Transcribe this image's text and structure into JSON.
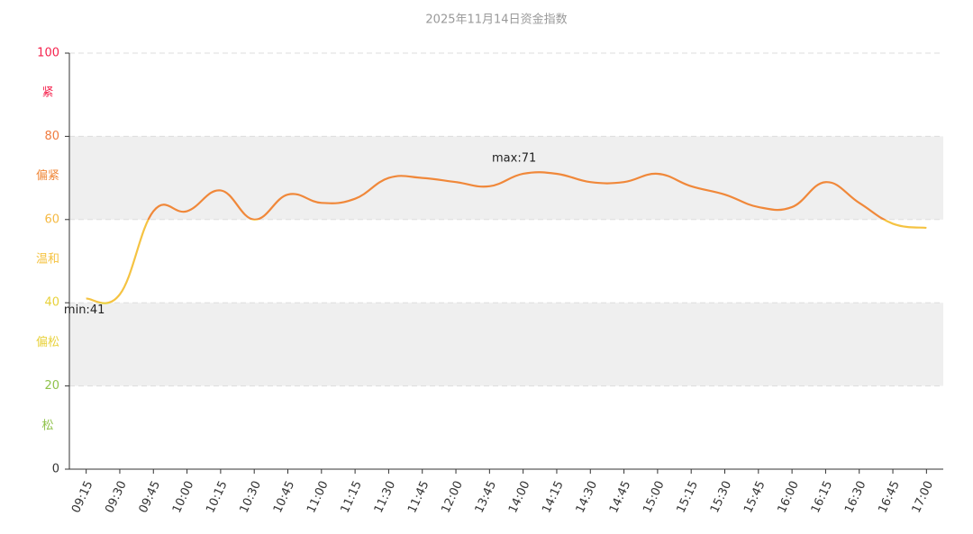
{
  "chart_data": {
    "type": "line",
    "title": "2025年11月14日资金指数",
    "categories": [
      "09:15",
      "09:30",
      "09:45",
      "10:00",
      "10:15",
      "10:30",
      "10:45",
      "11:00",
      "11:15",
      "11:30",
      "11:45",
      "12:00",
      "13:45",
      "14:00",
      "14:15",
      "14:30",
      "14:45",
      "15:00",
      "15:15",
      "15:30",
      "15:45",
      "16:00",
      "16:15",
      "16:30",
      "16:45",
      "17:00"
    ],
    "values": [
      41,
      42,
      62,
      62,
      67,
      60,
      66,
      64,
      65,
      70,
      70,
      69,
      68,
      71,
      71,
      69,
      69,
      71,
      68,
      66,
      63,
      63,
      69,
      64,
      59,
      58
    ],
    "ylim": [
      0,
      100
    ],
    "yticks": [
      0,
      20,
      40,
      60,
      80,
      100
    ],
    "ytick_colors": [
      "#333333",
      "#8fc24a",
      "#e8d13a",
      "#f5b942",
      "#f07b3f",
      "#f5224d"
    ],
    "pieces": [
      {
        "lower": 0,
        "upper": 20,
        "label": "松",
        "color": "#8fc24a",
        "shaded": false
      },
      {
        "lower": 20,
        "upper": 40,
        "label": "偏松",
        "color": "#e8d13a",
        "shaded": true
      },
      {
        "lower": 40,
        "upper": 60,
        "label": "温和",
        "color": "#f5c342",
        "shaded": false
      },
      {
        "lower": 60,
        "upper": 80,
        "label": "偏紧",
        "color": "#f0883a",
        "shaded": true
      },
      {
        "lower": 80,
        "upper": 100,
        "label": "紧",
        "color": "#f5224d",
        "shaded": false
      }
    ],
    "max_label": "max:71",
    "min_label": "min:41",
    "grid": true
  }
}
